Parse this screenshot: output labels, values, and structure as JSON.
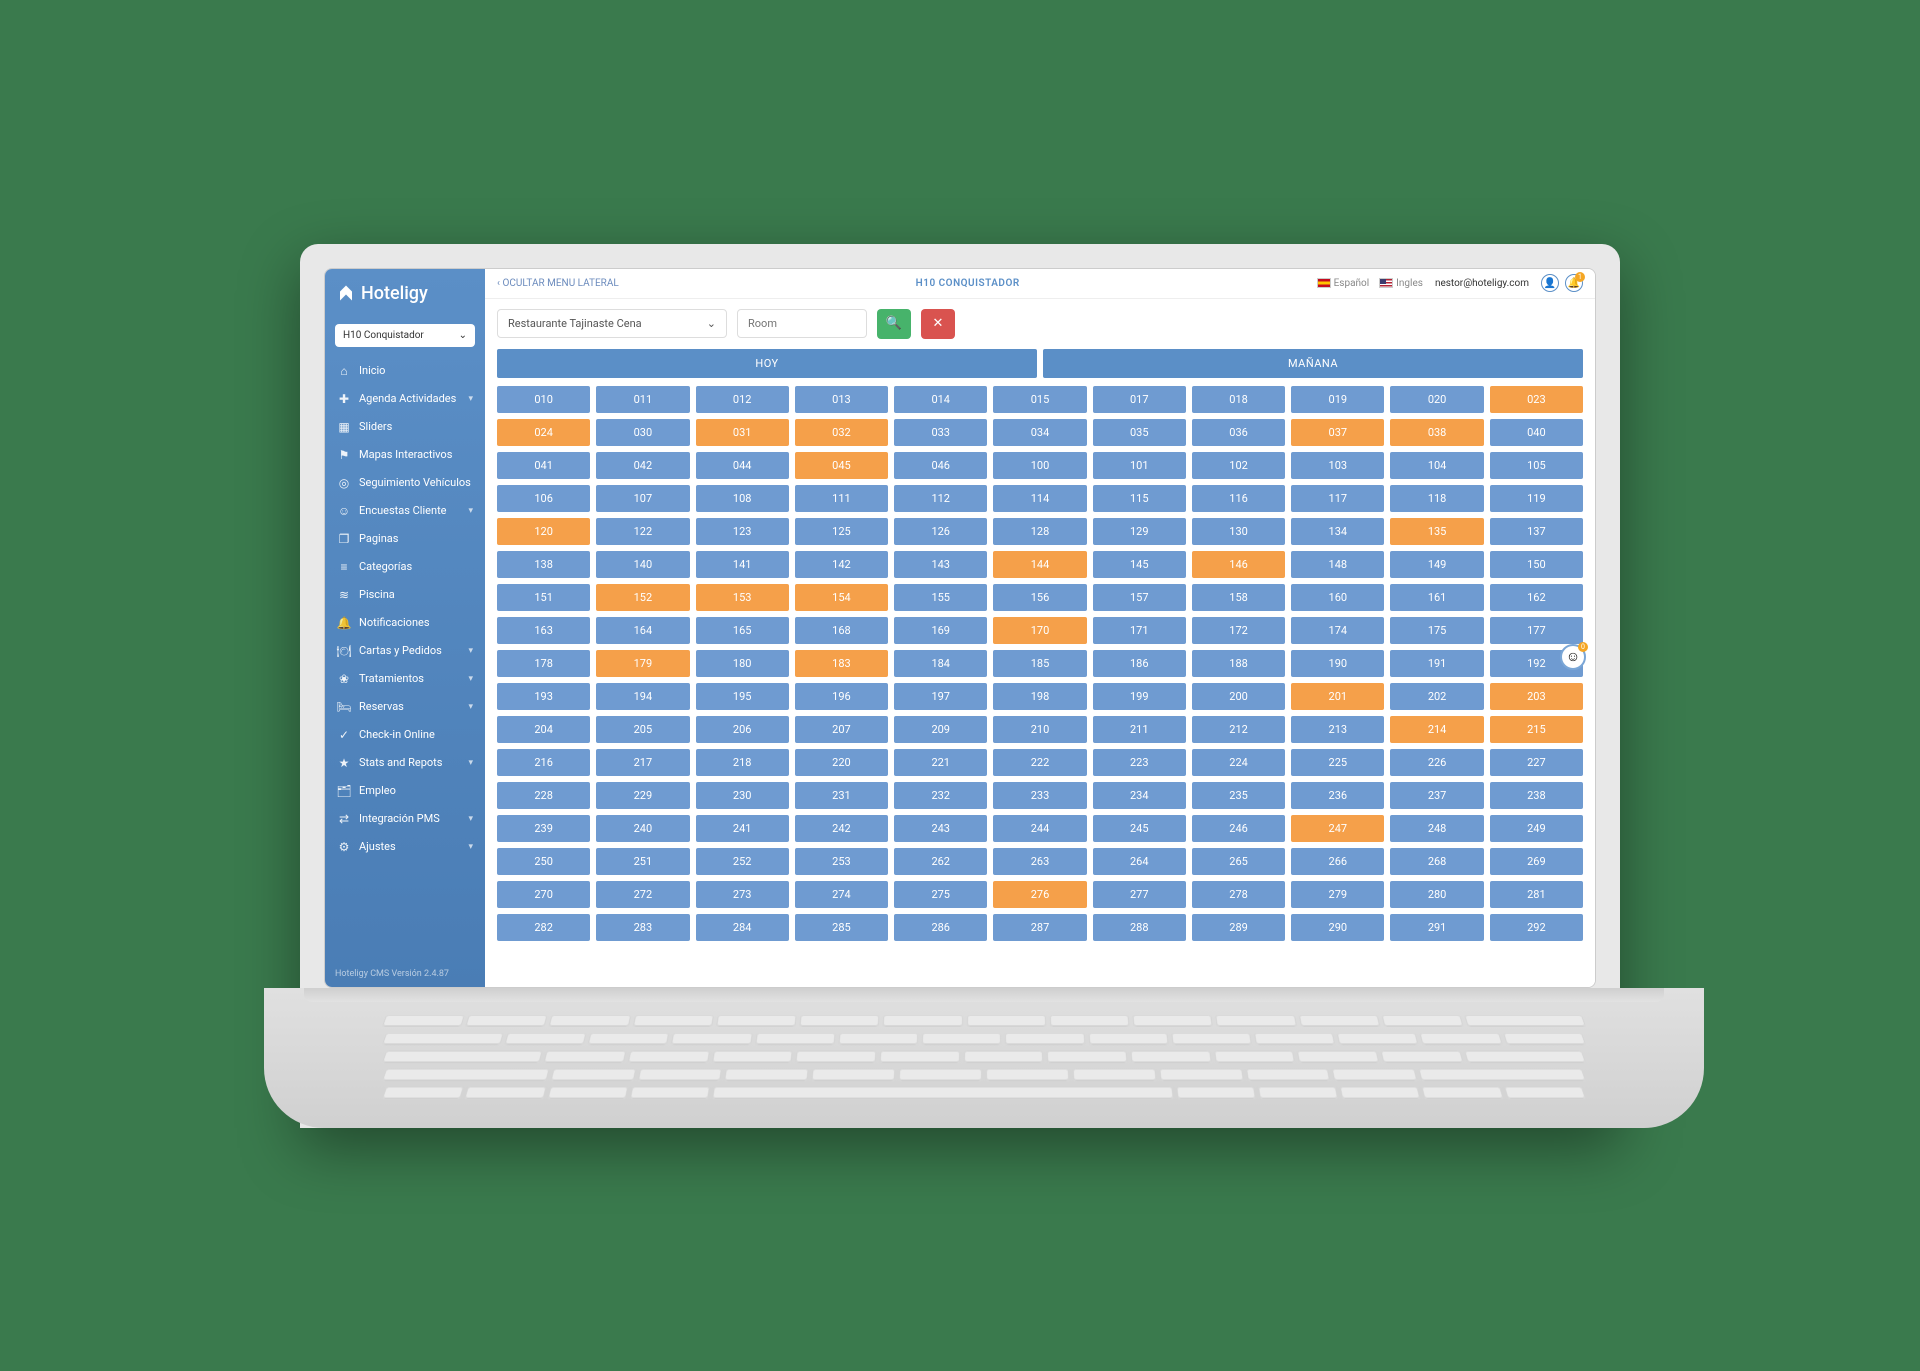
{
  "brand": "Hoteligy",
  "version": "Hoteligy CMS Versión 2.4.87",
  "hotel_selector": {
    "label": "H10 Conquistador"
  },
  "sidebar": {
    "items": [
      {
        "icon": "⌂",
        "label": "Inicio",
        "sub": false
      },
      {
        "icon": "✚",
        "label": "Agenda Actividades",
        "sub": true
      },
      {
        "icon": "▦",
        "label": "Sliders",
        "sub": false
      },
      {
        "icon": "⚑",
        "label": "Mapas Interactivos",
        "sub": false
      },
      {
        "icon": "◎",
        "label": "Seguimiento Vehículos",
        "sub": false
      },
      {
        "icon": "☺",
        "label": "Encuestas Cliente",
        "sub": true
      },
      {
        "icon": "❐",
        "label": "Paginas",
        "sub": false
      },
      {
        "icon": "≡",
        "label": "Categorías",
        "sub": false
      },
      {
        "icon": "≋",
        "label": "Piscina",
        "sub": false
      },
      {
        "icon": "🔔",
        "label": "Notificaciones",
        "sub": false
      },
      {
        "icon": "🍽",
        "label": "Cartas y Pedidos",
        "sub": true
      },
      {
        "icon": "❀",
        "label": "Tratamientos",
        "sub": true
      },
      {
        "icon": "🛏",
        "label": "Reservas",
        "sub": true
      },
      {
        "icon": "✓",
        "label": "Check-in Online",
        "sub": false
      },
      {
        "icon": "★",
        "label": "Stats and Repots",
        "sub": true
      },
      {
        "icon": "🗂",
        "label": "Empleo",
        "sub": false
      },
      {
        "icon": "⇄",
        "label": "Integración PMS",
        "sub": true
      },
      {
        "icon": "⚙",
        "label": "Ajustes",
        "sub": true
      }
    ]
  },
  "topbar": {
    "hide_menu": "OCULTAR MENU LATERAL",
    "title": "H10 CONQUISTADOR",
    "lang_es": "Español",
    "lang_en": "Ingles",
    "user": "nestor@hoteligy.com",
    "notif_badge": "1"
  },
  "filters": {
    "restaurant": "Restaurante Tajinaste Cena",
    "room_placeholder": "Room"
  },
  "day_headers": {
    "today": "HOY",
    "tomorrow": "MAÑANA"
  },
  "grid": {
    "colors": {
      "normal": "#6f9bd1",
      "highlight": "#f5a04a",
      "header": "#5b8fc7"
    },
    "cols": 11,
    "rows": [
      [
        {
          "v": "010"
        },
        {
          "v": "011"
        },
        {
          "v": "012"
        },
        {
          "v": "013"
        },
        {
          "v": "014"
        },
        {
          "v": "015"
        },
        {
          "v": "017"
        },
        {
          "v": "018"
        },
        {
          "v": "019"
        },
        {
          "v": "020"
        },
        {
          "v": "023",
          "h": 1
        }
      ],
      [
        {
          "v": "024",
          "h": 1
        },
        {
          "v": "030"
        },
        {
          "v": "031",
          "h": 1
        },
        {
          "v": "032",
          "h": 1
        },
        {
          "v": "033"
        },
        {
          "v": "034"
        },
        {
          "v": "035"
        },
        {
          "v": "036"
        },
        {
          "v": "037",
          "h": 1
        },
        {
          "v": "038",
          "h": 1
        },
        {
          "v": "040"
        }
      ],
      [
        {
          "v": "041"
        },
        {
          "v": "042"
        },
        {
          "v": "044"
        },
        {
          "v": "045",
          "h": 1
        },
        {
          "v": "046"
        },
        {
          "v": "100"
        },
        {
          "v": "101"
        },
        {
          "v": "102"
        },
        {
          "v": "103"
        },
        {
          "v": "104"
        },
        {
          "v": "105"
        }
      ],
      [
        {
          "v": "106"
        },
        {
          "v": "107"
        },
        {
          "v": "108"
        },
        {
          "v": "111"
        },
        {
          "v": "112"
        },
        {
          "v": "114"
        },
        {
          "v": "115"
        },
        {
          "v": "116"
        },
        {
          "v": "117"
        },
        {
          "v": "118"
        },
        {
          "v": "119"
        }
      ],
      [
        {
          "v": "120",
          "h": 1
        },
        {
          "v": "122"
        },
        {
          "v": "123"
        },
        {
          "v": "125"
        },
        {
          "v": "126"
        },
        {
          "v": "128"
        },
        {
          "v": "129"
        },
        {
          "v": "130"
        },
        {
          "v": "134"
        },
        {
          "v": "135",
          "h": 1
        },
        {
          "v": "137"
        }
      ],
      [
        {
          "v": "138"
        },
        {
          "v": "140"
        },
        {
          "v": "141"
        },
        {
          "v": "142"
        },
        {
          "v": "143"
        },
        {
          "v": "144",
          "h": 1
        },
        {
          "v": "145"
        },
        {
          "v": "146",
          "h": 1
        },
        {
          "v": "148"
        },
        {
          "v": "149"
        },
        {
          "v": "150"
        }
      ],
      [
        {
          "v": "151"
        },
        {
          "v": "152",
          "h": 1
        },
        {
          "v": "153",
          "h": 1
        },
        {
          "v": "154",
          "h": 1
        },
        {
          "v": "155"
        },
        {
          "v": "156"
        },
        {
          "v": "157"
        },
        {
          "v": "158"
        },
        {
          "v": "160"
        },
        {
          "v": "161"
        },
        {
          "v": "162"
        }
      ],
      [
        {
          "v": "163"
        },
        {
          "v": "164"
        },
        {
          "v": "165"
        },
        {
          "v": "168"
        },
        {
          "v": "169"
        },
        {
          "v": "170",
          "h": 1
        },
        {
          "v": "171"
        },
        {
          "v": "172"
        },
        {
          "v": "174"
        },
        {
          "v": "175"
        },
        {
          "v": "177"
        }
      ],
      [
        {
          "v": "178"
        },
        {
          "v": "179",
          "h": 1
        },
        {
          "v": "180"
        },
        {
          "v": "183",
          "h": 1
        },
        {
          "v": "184"
        },
        {
          "v": "185"
        },
        {
          "v": "186"
        },
        {
          "v": "188"
        },
        {
          "v": "190"
        },
        {
          "v": "191"
        },
        {
          "v": "192"
        }
      ],
      [
        {
          "v": "193"
        },
        {
          "v": "194"
        },
        {
          "v": "195"
        },
        {
          "v": "196"
        },
        {
          "v": "197"
        },
        {
          "v": "198"
        },
        {
          "v": "199"
        },
        {
          "v": "200"
        },
        {
          "v": "201",
          "h": 1
        },
        {
          "v": "202"
        },
        {
          "v": "203",
          "h": 1
        }
      ],
      [
        {
          "v": "204"
        },
        {
          "v": "205"
        },
        {
          "v": "206"
        },
        {
          "v": "207"
        },
        {
          "v": "209"
        },
        {
          "v": "210"
        },
        {
          "v": "211"
        },
        {
          "v": "212"
        },
        {
          "v": "213"
        },
        {
          "v": "214",
          "h": 1
        },
        {
          "v": "215",
          "h": 1
        }
      ],
      [
        {
          "v": "216"
        },
        {
          "v": "217"
        },
        {
          "v": "218"
        },
        {
          "v": "220"
        },
        {
          "v": "221"
        },
        {
          "v": "222"
        },
        {
          "v": "223"
        },
        {
          "v": "224"
        },
        {
          "v": "225"
        },
        {
          "v": "226"
        },
        {
          "v": "227"
        }
      ],
      [
        {
          "v": "228"
        },
        {
          "v": "229"
        },
        {
          "v": "230"
        },
        {
          "v": "231"
        },
        {
          "v": "232"
        },
        {
          "v": "233"
        },
        {
          "v": "234"
        },
        {
          "v": "235"
        },
        {
          "v": "236"
        },
        {
          "v": "237"
        },
        {
          "v": "238"
        }
      ],
      [
        {
          "v": "239"
        },
        {
          "v": "240"
        },
        {
          "v": "241"
        },
        {
          "v": "242"
        },
        {
          "v": "243"
        },
        {
          "v": "244"
        },
        {
          "v": "245"
        },
        {
          "v": "246"
        },
        {
          "v": "247",
          "h": 1
        },
        {
          "v": "248"
        },
        {
          "v": "249"
        }
      ],
      [
        {
          "v": "250"
        },
        {
          "v": "251"
        },
        {
          "v": "252"
        },
        {
          "v": "253"
        },
        {
          "v": "262"
        },
        {
          "v": "263"
        },
        {
          "v": "264"
        },
        {
          "v": "265"
        },
        {
          "v": "266"
        },
        {
          "v": "268"
        },
        {
          "v": "269"
        }
      ],
      [
        {
          "v": "270"
        },
        {
          "v": "272"
        },
        {
          "v": "273"
        },
        {
          "v": "274"
        },
        {
          "v": "275"
        },
        {
          "v": "276",
          "h": 1
        },
        {
          "v": "277"
        },
        {
          "v": "278"
        },
        {
          "v": "279"
        },
        {
          "v": "280"
        },
        {
          "v": "281"
        }
      ],
      [
        {
          "v": "282"
        },
        {
          "v": "283"
        },
        {
          "v": "284"
        },
        {
          "v": "285"
        },
        {
          "v": "286"
        },
        {
          "v": "287"
        },
        {
          "v": "288"
        },
        {
          "v": "289"
        },
        {
          "v": "290"
        },
        {
          "v": "291"
        },
        {
          "v": "292"
        }
      ]
    ]
  },
  "float_badge": "0"
}
